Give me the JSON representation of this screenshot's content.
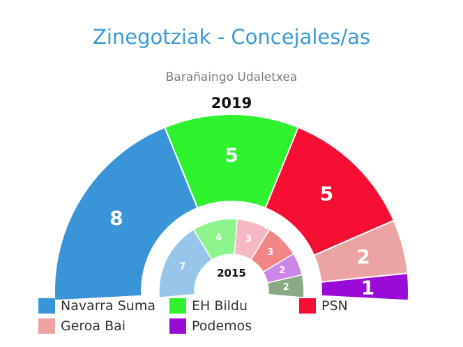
{
  "chart_data": {
    "type": "pie",
    "title": "Zinegotziak - Concejales/as",
    "subtitle": "Barañaingo Udaletxea",
    "series": [
      {
        "name": "2019",
        "slices": [
          {
            "label": "Navarra Suma",
            "value": 8,
            "color": "#3a94d8"
          },
          {
            "label": "EH Bildu",
            "value": 5,
            "color": "#2ef22e"
          },
          {
            "label": "PSN",
            "value": 5,
            "color": "#f50f33"
          },
          {
            "label": "Geroa Bai",
            "value": 2,
            "color": "#eba3a3"
          },
          {
            "label": "Podemos",
            "value": 1,
            "color": "#9a0bd6"
          }
        ]
      },
      {
        "name": "2015",
        "slices": [
          {
            "value": 7,
            "color": "#98c6eb"
          },
          {
            "value": 4,
            "color": "#8ef58e"
          },
          {
            "value": 3,
            "color": "#f6b8c2"
          },
          {
            "value": 3,
            "color": "#f08686"
          },
          {
            "value": 2,
            "color": "#cc85e8"
          },
          {
            "value": 2,
            "color": "#8aaa84"
          }
        ]
      }
    ],
    "legend": {
      "position": "bottom",
      "items": [
        {
          "label": "Navarra Suma",
          "color": "#3a94d8"
        },
        {
          "label": "EH Bildu",
          "color": "#2ef22e"
        },
        {
          "label": "PSN",
          "color": "#f50f33"
        },
        {
          "label": "Geroa Bai",
          "color": "#eba3a3"
        },
        {
          "label": "Podemos",
          "color": "#9a0bd6"
        }
      ]
    }
  }
}
